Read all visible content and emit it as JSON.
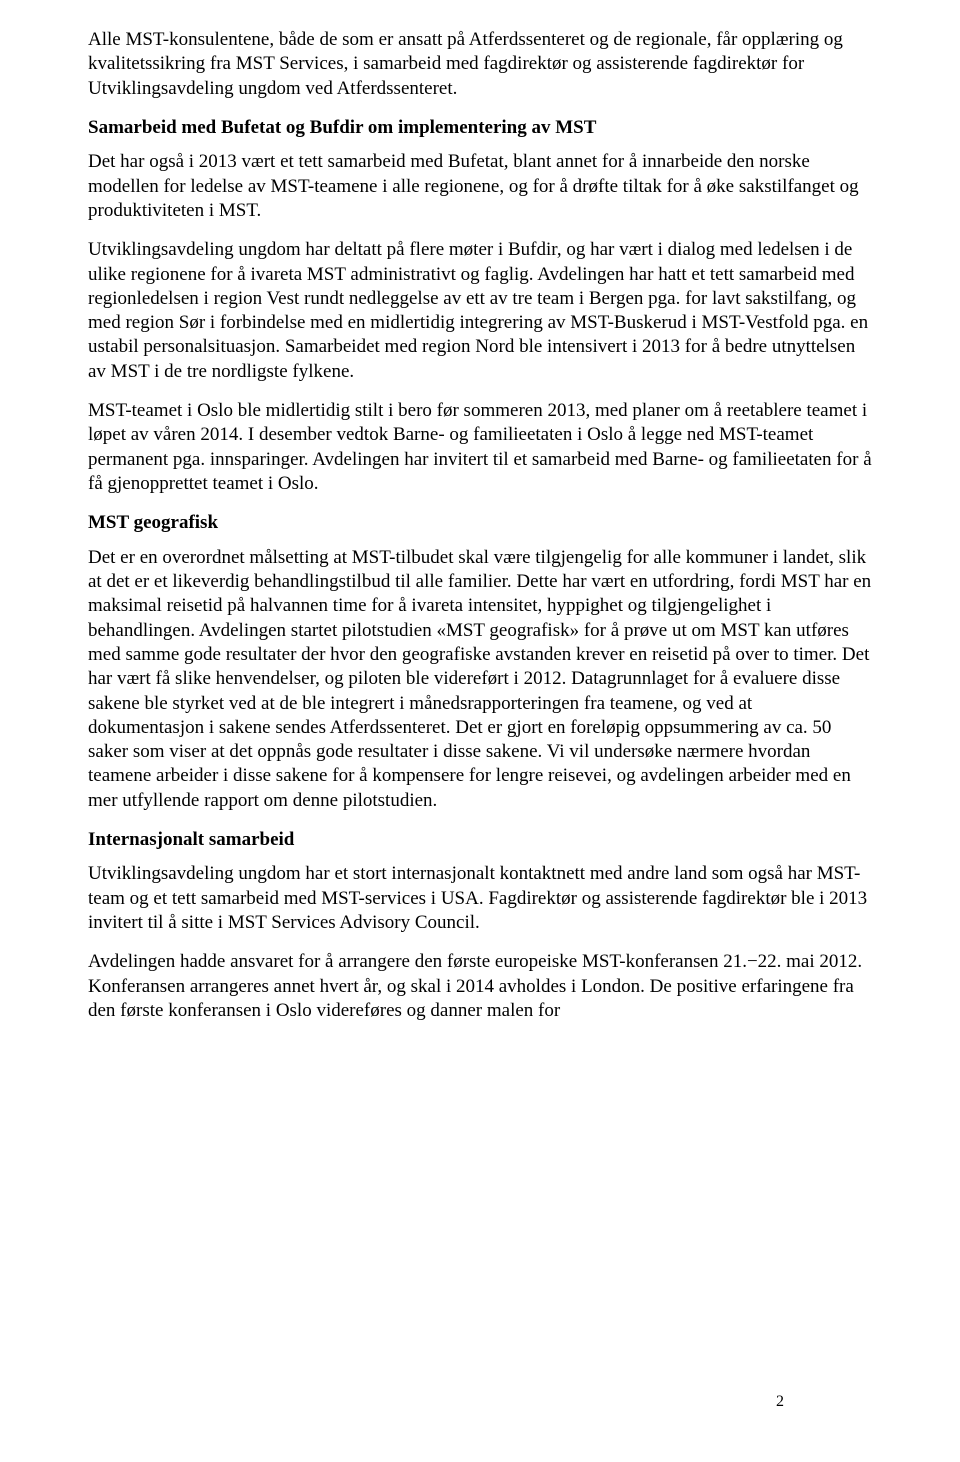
{
  "paragraphs": {
    "p1": "Alle MST-konsulentene, både de som er ansatt på Atferdssenteret og de regionale, får opplæring og kvalitetssikring fra MST Services, i samarbeid med fagdirektør og assisterende fagdirektør for Utviklingsavdeling ungdom ved Atferdssenteret.",
    "h1": "Samarbeid med Bufetat og Bufdir om implementering av MST",
    "p2": "Det har også i 2013 vært et tett samarbeid med Bufetat, blant annet for å innarbeide den norske modellen for ledelse av MST-teamene i alle regionene, og for å drøfte tiltak for å øke sakstilfanget og produktiviteten i MST.",
    "p3": "Utviklingsavdeling ungdom har deltatt på flere møter i Bufdir, og har vært i dialog med ledelsen i de ulike regionene for å ivareta MST administrativt og faglig. Avdelingen har hatt et tett samarbeid med regionledelsen i region Vest rundt nedleggelse av ett av tre team i Bergen pga. for lavt sakstilfang, og med region Sør i forbindelse med en midlertidig integrering av MST-Buskerud i MST-Vestfold pga. en ustabil personalsituasjon. Samarbeidet med region Nord ble intensivert i 2013 for å bedre utnyttelsen av MST i de tre nordligste fylkene.",
    "p4": "MST-teamet i Oslo ble midlertidig stilt i bero før sommeren 2013, med planer om å reetablere teamet i løpet av våren 2014.  I desember vedtok Barne- og familieetaten i Oslo å legge ned MST-teamet permanent pga. innsparinger. Avdelingen har invitert til et samarbeid med Barne- og familieetaten for å få gjenopprettet teamet i Oslo.",
    "h2": "MST geografisk",
    "p5": "Det er en overordnet målsetting at MST-tilbudet skal være tilgjengelig for alle kommuner i landet, slik at det er et likeverdig behandlingstilbud til alle familier. Dette har vært en utfordring, fordi MST har en maksimal reisetid på halvannen time for å ivareta intensitet, hyppighet og tilgjengelighet i behandlingen. Avdelingen startet pilotstudien «MST geografisk» for å prøve ut om MST kan utføres med samme gode resultater der hvor den geografiske avstanden krever en reisetid på over to timer. Det har vært få slike henvendelser, og piloten ble videreført i 2012. Datagrunnlaget for å evaluere disse sakene ble styrket ved at de ble integrert i månedsrapporteringen fra teamene, og ved at dokumentasjon i sakene sendes Atferdssenteret. Det er gjort en foreløpig oppsummering av ca. 50 saker som viser at det oppnås gode resultater i disse sakene. Vi vil undersøke nærmere hvordan teamene arbeider i disse sakene for å kompensere for lengre reisevei, og avdelingen arbeider med en mer utfyllende rapport om denne pilotstudien.",
    "h3": "Internasjonalt samarbeid",
    "p6": "Utviklingsavdeling ungdom har et stort internasjonalt kontaktnett med andre land som også har MST-team og et tett samarbeid med MST-services i USA. Fagdirektør og assisterende fagdirektør ble i 2013 invitert til å sitte i MST Services Advisory Council.",
    "p7": "Avdelingen hadde ansvaret for å arrangere den første europeiske MST-konferansen 21.−22. mai 2012. Konferansen arrangeres annet hvert år, og skal i 2014 avholdes i London. De positive erfaringene fra den første konferansen i Oslo videreføres og danner malen for"
  },
  "page_number": "2"
}
